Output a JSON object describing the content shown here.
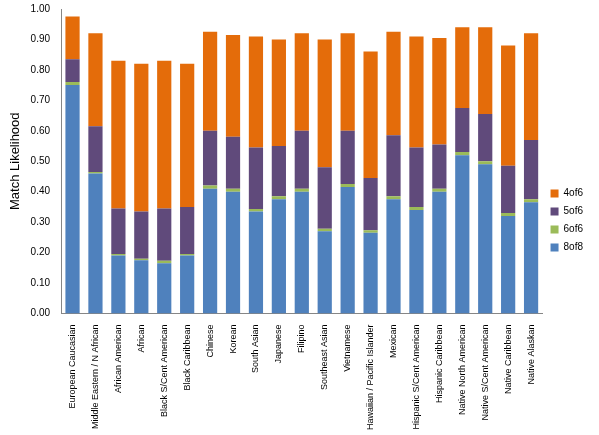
{
  "chart_data": {
    "type": "bar",
    "stacked": true,
    "grid": false,
    "legend": "right",
    "y_label": "Match Likelihood",
    "categories": [
      "European Caucasian",
      "Middle Eastern / N African",
      "African American",
      "African",
      "Black S/Cent American",
      "Black Caribbean",
      "Chinese",
      "Korean",
      "South Asian",
      "Japanese",
      "Filipino",
      "Southeast Asian",
      "Vietnamese",
      "Hawaiian / Pacific Islander",
      "Mexican",
      "Hispanic S/Cent American",
      "Hispanic Caribbean",
      "Native North American",
      "Native S/Cent American",
      "Native Caribbean",
      "Native Alaskan"
    ],
    "series": [
      {
        "name": "8of8",
        "color": "#4f81bd",
        "values": [
          0.75,
          0.46,
          0.19,
          0.175,
          0.165,
          0.19,
          0.41,
          0.4,
          0.335,
          0.375,
          0.4,
          0.27,
          0.415,
          0.265,
          0.375,
          0.34,
          0.4,
          0.52,
          0.49,
          0.32,
          0.365
        ]
      },
      {
        "name": "6of6",
        "color": "#9bbb59",
        "values": [
          0.01,
          0.005,
          0.005,
          0.005,
          0.008,
          0.005,
          0.01,
          0.01,
          0.008,
          0.01,
          0.01,
          0.008,
          0.01,
          0.008,
          0.01,
          0.01,
          0.01,
          0.01,
          0.01,
          0.01,
          0.01
        ]
      },
      {
        "name": "5of6",
        "color": "#604a7b",
        "values": [
          0.075,
          0.15,
          0.15,
          0.155,
          0.172,
          0.155,
          0.18,
          0.17,
          0.202,
          0.165,
          0.19,
          0.202,
          0.175,
          0.172,
          0.2,
          0.195,
          0.145,
          0.145,
          0.155,
          0.155,
          0.195
        ]
      },
      {
        "name": "4of6",
        "color": "#e46c0a",
        "values": [
          0.14,
          0.305,
          0.485,
          0.485,
          0.485,
          0.47,
          0.325,
          0.335,
          0.365,
          0.35,
          0.32,
          0.42,
          0.32,
          0.415,
          0.34,
          0.365,
          0.35,
          0.265,
          0.285,
          0.395,
          0.35
        ]
      }
    ],
    "ylim": [
      0,
      1
    ],
    "yticks": [
      {
        "value": 0,
        "label": "0.00"
      },
      {
        "value": 0.1,
        "label": "0.10"
      },
      {
        "value": 0.2,
        "label": "0.20"
      },
      {
        "value": 0.3,
        "label": "0.30"
      },
      {
        "value": 0.4,
        "label": "0.40"
      },
      {
        "value": 0.5,
        "label": "0.50"
      },
      {
        "value": 0.6,
        "label": "0.60"
      },
      {
        "value": 0.7,
        "label": "0.70"
      },
      {
        "value": 0.8,
        "label": "0.80"
      },
      {
        "value": 0.9,
        "label": "0.90"
      },
      {
        "value": 1,
        "label": "1.00"
      }
    ]
  }
}
